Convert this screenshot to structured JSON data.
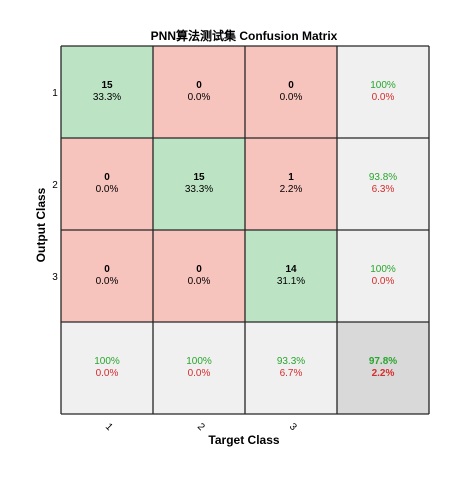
{
  "chart_data": {
    "type": "heatmap",
    "title": "PNN算法测试集 Confusion Matrix",
    "xlabel": "Target Class",
    "ylabel": "Output Class",
    "x_ticks": [
      "1",
      "2",
      "3"
    ],
    "y_ticks": [
      "1",
      "2",
      "3"
    ],
    "counts": [
      [
        15,
        0,
        0
      ],
      [
        0,
        15,
        1
      ],
      [
        0,
        0,
        14
      ]
    ],
    "cell_percent": [
      [
        "33.3%",
        "0.0%",
        "0.0%"
      ],
      [
        "0.0%",
        "33.3%",
        "2.2%"
      ],
      [
        "0.0%",
        "0.0%",
        "31.1%"
      ]
    ],
    "row_summary": [
      [
        "100%",
        "0.0%"
      ],
      [
        "93.8%",
        "6.3%"
      ],
      [
        "100%",
        "0.0%"
      ]
    ],
    "col_summary": [
      [
        "100%",
        "0.0%"
      ],
      [
        "100%",
        "0.0%"
      ],
      [
        "93.3%",
        "6.7%"
      ]
    ],
    "overall": [
      "97.8%",
      "2.2%"
    ]
  },
  "colors": {
    "correct_cell": "#bce4c4",
    "error_cell": "#f7c3bd",
    "summary_cell": "#f0f0f0",
    "overall_cell": "#d9d9d9",
    "correct_text": "#2aa52e",
    "error_text": "#d62d2d",
    "grid": "#262626"
  }
}
